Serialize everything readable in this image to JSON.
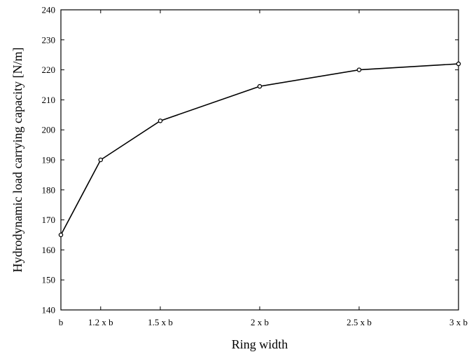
{
  "chart_data": {
    "type": "line",
    "xlabel": "Ring width",
    "ylabel": "Hydrodynamic load carrying capacity [N/m]",
    "x": [
      1,
      1.2,
      1.5,
      2,
      2.5,
      3
    ],
    "categories": [
      "b",
      "1.2 x b",
      "1.5 x b",
      "2 x b",
      "2.5 x b",
      "3 x b"
    ],
    "series": [
      {
        "values": [
          165,
          190,
          203,
          214.5,
          220,
          222
        ]
      }
    ],
    "xlim": [
      1,
      3
    ],
    "ylim": [
      140,
      240
    ],
    "yticks": [
      "140",
      "150",
      "160",
      "170",
      "180",
      "190",
      "200",
      "210",
      "220",
      "230",
      "240"
    ],
    "grid": false,
    "marker": "open-circle",
    "line_color": "#000000"
  }
}
